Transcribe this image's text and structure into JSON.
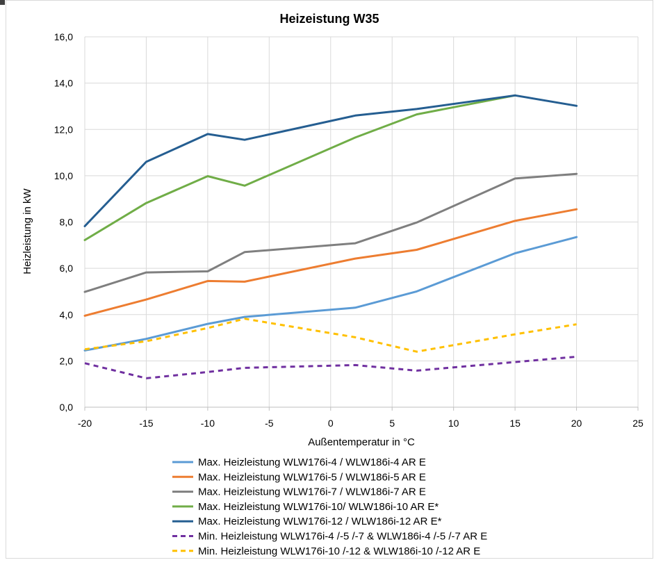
{
  "chart_data": {
    "type": "line",
    "title": "Heizeistung W35",
    "xlabel": "Außentemperatur in °C",
    "ylabel": "Heizleistung in kW",
    "xlim": [
      -20,
      25
    ],
    "ylim": [
      0,
      16
    ],
    "x_ticks": [
      "-20",
      "-15",
      "-10",
      "-5",
      "0",
      "5",
      "10",
      "15",
      "20",
      "25"
    ],
    "y_ticks": [
      "0,0",
      "2,0",
      "4,0",
      "6,0",
      "8,0",
      "10,0",
      "12,0",
      "14,0",
      "16,0"
    ],
    "grid": true,
    "legend_position": "bottom",
    "series": [
      {
        "name": "Max. Heizleistung WLW176i-4 / WLW186i-4 AR E",
        "color": "#5b9bd5",
        "dash": "solid",
        "x": [
          -20,
          -15,
          -10,
          -7,
          2,
          7,
          15,
          20
        ],
        "y": [
          2.45,
          2.95,
          3.6,
          3.9,
          4.3,
          5.0,
          6.65,
          7.35
        ]
      },
      {
        "name": "Max. Heizleistung WLW176i-5 / WLW186i-5 AR E",
        "color": "#ed7d31",
        "dash": "solid",
        "x": [
          -20,
          -15,
          -10,
          -7,
          2,
          7,
          15,
          20
        ],
        "y": [
          3.95,
          4.65,
          5.45,
          5.42,
          6.42,
          6.8,
          8.05,
          8.55
        ]
      },
      {
        "name": "Max. Heizleistung WLW176i-7 / WLW186i-7 AR E",
        "color": "#7f7f7f",
        "dash": "solid",
        "x": [
          -20,
          -15,
          -10,
          -7,
          2,
          7,
          15,
          20
        ],
        "y": [
          4.98,
          5.82,
          5.87,
          6.7,
          7.08,
          7.98,
          9.88,
          10.08
        ]
      },
      {
        "name": "Max. Heizleistung WLW176i-10/ WLW186i-10 AR E*",
        "color": "#70ad47",
        "dash": "solid",
        "x": [
          -20,
          -15,
          -10,
          -7,
          2,
          7,
          15
        ],
        "y": [
          7.22,
          8.82,
          9.98,
          9.57,
          11.65,
          12.65,
          13.47
        ]
      },
      {
        "name": "Max. Heizleistung WLW176i-12 / WLW186i-12 AR E*",
        "color": "#255e91",
        "dash": "solid",
        "x": [
          -20,
          -15,
          -10,
          -7,
          2,
          7,
          15,
          20
        ],
        "y": [
          7.82,
          10.6,
          11.8,
          11.55,
          12.6,
          12.88,
          13.47,
          13.02
        ]
      },
      {
        "name": "Min. Heizleistung WLW176i-4 /-5 /-7 & WLW186i-4 /-5 /-7 AR E",
        "color": "#7030a0",
        "dash": "dashed",
        "x": [
          -20,
          -15,
          -10,
          -7,
          2,
          7,
          15,
          20
        ],
        "y": [
          1.9,
          1.25,
          1.52,
          1.7,
          1.82,
          1.58,
          1.95,
          2.18
        ]
      },
      {
        "name": "Min. Heizleistung WLW176i-10 /-12 & WLW186i-10 /-12 AR E",
        "color": "#ffc000",
        "dash": "dashed",
        "x": [
          -20,
          -15,
          -10,
          -7,
          2,
          7,
          15,
          20
        ],
        "y": [
          2.5,
          2.85,
          3.42,
          3.82,
          3.02,
          2.4,
          3.15,
          3.58
        ]
      }
    ]
  }
}
